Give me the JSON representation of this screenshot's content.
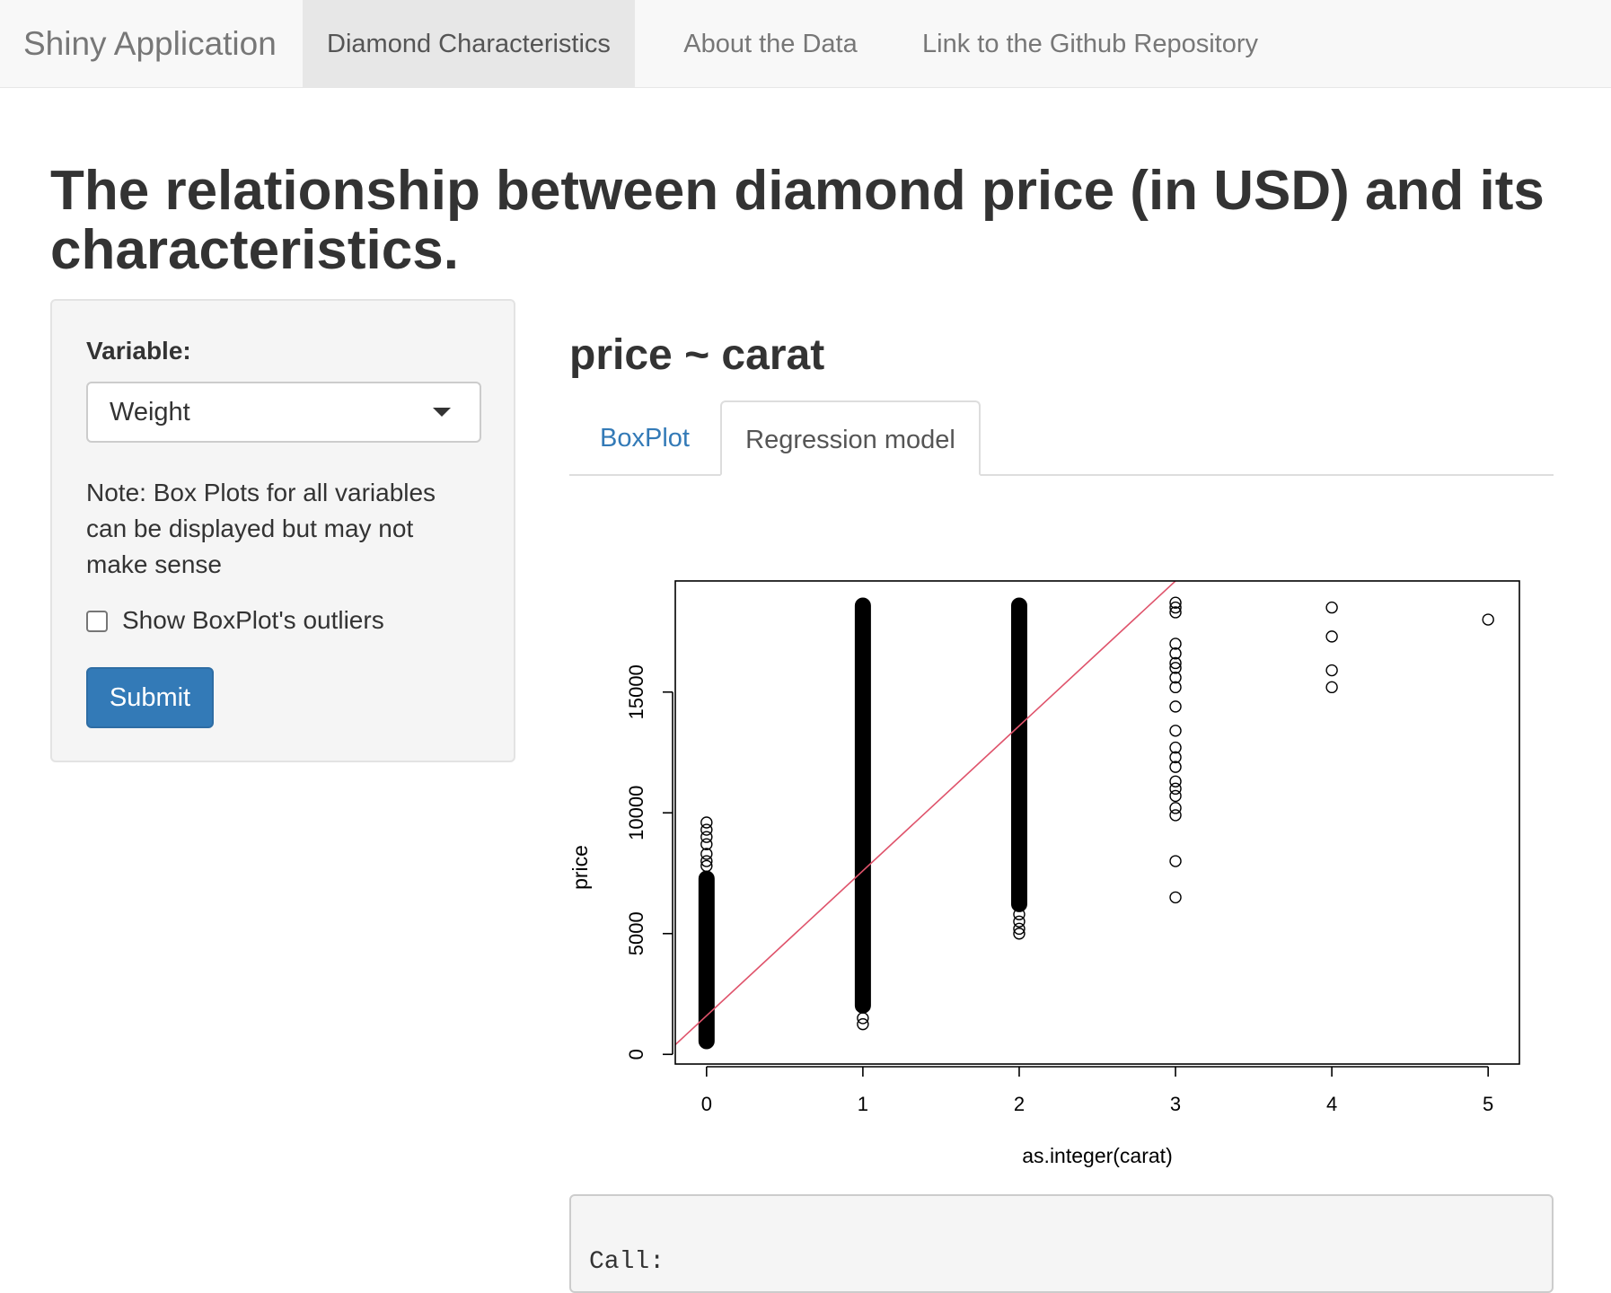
{
  "navbar": {
    "brand": "Shiny Application",
    "items": [
      {
        "label": "Diamond Characteristics",
        "active": true
      },
      {
        "label": "About the Data",
        "active": false
      },
      {
        "label": "Link to the Github Repository",
        "active": false
      }
    ]
  },
  "page": {
    "title": "The relationship between diamond price (in USD) and its characteristics."
  },
  "sidebar": {
    "variable_label": "Variable:",
    "select_value": "Weight",
    "note": "Note: Box Plots for all variables can be displayed but may not make sense",
    "checkbox_label": "Show BoxPlot's outliers",
    "checkbox_checked": false,
    "submit_label": "Submit"
  },
  "main": {
    "formula": "price ~ carat",
    "tabs": [
      {
        "label": "BoxPlot",
        "active": false
      },
      {
        "label": "Regression model",
        "active": true
      }
    ],
    "output_text": "Call:"
  },
  "colors": {
    "primary": "#337ab7",
    "regression_line": "#df536b"
  },
  "chart_data": {
    "type": "scatter",
    "title": "",
    "xlabel": "as.integer(carat)",
    "ylabel": "price",
    "xlim": [
      -0.2,
      5.2
    ],
    "ylim": [
      -400,
      19600
    ],
    "x_ticks": [
      0,
      1,
      2,
      3,
      4,
      5
    ],
    "y_ticks": [
      0,
      5000,
      10000,
      15000
    ],
    "grid": false,
    "legend": "none",
    "columns": [
      {
        "x": 0,
        "y_min": 326,
        "y_max": 7500
      },
      {
        "x": 1,
        "y_min": 1800,
        "y_max": 18800
      },
      {
        "x": 2,
        "y_min": 6000,
        "y_max": 18800
      }
    ],
    "points": [
      {
        "x": 0,
        "y": 9600
      },
      {
        "x": 0,
        "y": 9300
      },
      {
        "x": 0,
        "y": 9000
      },
      {
        "x": 0,
        "y": 8700
      },
      {
        "x": 0,
        "y": 8300
      },
      {
        "x": 0,
        "y": 8000
      },
      {
        "x": 0,
        "y": 7800
      },
      {
        "x": 1,
        "y": 1250
      },
      {
        "x": 1,
        "y": 1500
      },
      {
        "x": 2,
        "y": 5000
      },
      {
        "x": 2,
        "y": 5200
      },
      {
        "x": 2,
        "y": 5500
      },
      {
        "x": 2,
        "y": 5800
      },
      {
        "x": 2,
        "y": 6200
      },
      {
        "x": 2,
        "y": 7000
      },
      {
        "x": 2,
        "y": 7600
      },
      {
        "x": 2,
        "y": 8200
      },
      {
        "x": 2,
        "y": 8700
      },
      {
        "x": 2,
        "y": 9100
      },
      {
        "x": 3,
        "y": 18700
      },
      {
        "x": 3,
        "y": 18500
      },
      {
        "x": 3,
        "y": 18300
      },
      {
        "x": 3,
        "y": 17000
      },
      {
        "x": 3,
        "y": 16600
      },
      {
        "x": 3,
        "y": 16200
      },
      {
        "x": 3,
        "y": 16000
      },
      {
        "x": 3,
        "y": 15600
      },
      {
        "x": 3,
        "y": 15200
      },
      {
        "x": 3,
        "y": 14400
      },
      {
        "x": 3,
        "y": 13400
      },
      {
        "x": 3,
        "y": 12700
      },
      {
        "x": 3,
        "y": 12300
      },
      {
        "x": 3,
        "y": 11900
      },
      {
        "x": 3,
        "y": 11300
      },
      {
        "x": 3,
        "y": 11000
      },
      {
        "x": 3,
        "y": 10700
      },
      {
        "x": 3,
        "y": 10200
      },
      {
        "x": 3,
        "y": 9900
      },
      {
        "x": 3,
        "y": 8000
      },
      {
        "x": 3,
        "y": 6500
      },
      {
        "x": 4,
        "y": 18500
      },
      {
        "x": 4,
        "y": 17300
      },
      {
        "x": 4,
        "y": 15900
      },
      {
        "x": 4,
        "y": 15200
      },
      {
        "x": 5,
        "y": 18000
      }
    ],
    "regression_line": {
      "intercept": 1600,
      "slope": 6000
    }
  }
}
